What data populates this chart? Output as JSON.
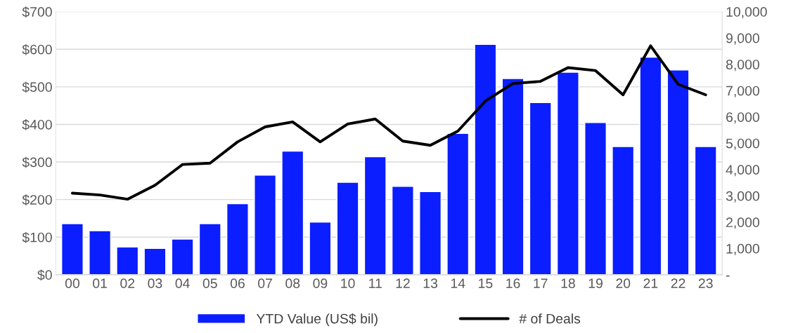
{
  "chart_data": {
    "type": "bar",
    "categories": [
      "00",
      "01",
      "02",
      "03",
      "04",
      "05",
      "06",
      "07",
      "08",
      "09",
      "10",
      "11",
      "12",
      "13",
      "14",
      "15",
      "16",
      "17",
      "18",
      "19",
      "20",
      "21",
      "22",
      "23"
    ],
    "series": [
      {
        "name": "YTD Value (US$ bil)",
        "color": "#0a1eff",
        "values": [
          136,
          117,
          74,
          70,
          95,
          136,
          189,
          265,
          329,
          140,
          246,
          314,
          235,
          221,
          376,
          613,
          522,
          458,
          539,
          405,
          341,
          579,
          545,
          341
        ]
      },
      {
        "name": "# of Deals",
        "type": "line",
        "axis": "y2",
        "color": "#000000",
        "values": [
          3100,
          3030,
          2870,
          3400,
          4190,
          4240,
          5050,
          5620,
          5810,
          5050,
          5730,
          5920,
          5080,
          4920,
          5460,
          6600,
          7270,
          7350,
          7870,
          7760,
          6840,
          8700,
          7240,
          6840
        ]
      }
    ],
    "ylim": [
      0,
      700
    ],
    "yticks": [
      {
        "value": 0,
        "label": "$0"
      },
      {
        "value": 100,
        "label": "$100"
      },
      {
        "value": 200,
        "label": "$200"
      },
      {
        "value": 300,
        "label": "$300"
      },
      {
        "value": 400,
        "label": "$400"
      },
      {
        "value": 500,
        "label": "$500"
      },
      {
        "value": 600,
        "label": "$600"
      },
      {
        "value": 700,
        "label": "$700"
      }
    ],
    "y2lim": [
      0,
      10000
    ],
    "y2ticks": [
      {
        "value": 0,
        "label": "-"
      },
      {
        "value": 1000,
        "label": "1,000"
      },
      {
        "value": 2000,
        "label": "2,000"
      },
      {
        "value": 3000,
        "label": "3,000"
      },
      {
        "value": 4000,
        "label": "4,000"
      },
      {
        "value": 5000,
        "label": "5,000"
      },
      {
        "value": 6000,
        "label": "6,000"
      },
      {
        "value": 7000,
        "label": "7,000"
      },
      {
        "value": 8000,
        "label": "8,000"
      },
      {
        "value": 9000,
        "label": "9,000"
      },
      {
        "value": 10000,
        "label": "10,000"
      }
    ],
    "grid": "y",
    "legend": "bottom",
    "marker": "none",
    "line_style": "solid"
  }
}
